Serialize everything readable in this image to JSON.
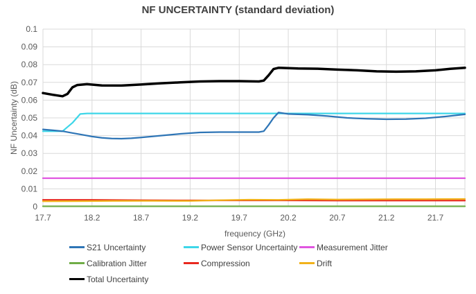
{
  "chart_data": {
    "type": "line",
    "title": "NF UNCERTAINTY (standard deviation)",
    "xlabel": "frequency (GHz)",
    "ylabel": "NF Uncertainty (dB)",
    "xlim": [
      17.7,
      22.0
    ],
    "ylim": [
      0,
      0.1
    ],
    "x_ticks": [
      "17.7",
      "18.2",
      "18.7",
      "19.2",
      "19.7",
      "20.2",
      "20.7",
      "21.2",
      "21.7"
    ],
    "y_ticks": [
      "0",
      "0.01",
      "0.02",
      "0.03",
      "0.04",
      "0.05",
      "0.06",
      "0.07",
      "0.08",
      "0.09",
      "0.1"
    ],
    "grid": true,
    "legend_position": "bottom",
    "series": [
      {
        "name": "S21 Uncertainty",
        "color": "#2E75B6",
        "points": [
          [
            17.7,
            0.0435
          ],
          [
            17.8,
            0.043
          ],
          [
            17.9,
            0.0425
          ],
          [
            18.0,
            0.0415
          ],
          [
            18.1,
            0.0405
          ],
          [
            18.2,
            0.0395
          ],
          [
            18.3,
            0.0388
          ],
          [
            18.4,
            0.0384
          ],
          [
            18.5,
            0.0383
          ],
          [
            18.6,
            0.0385
          ],
          [
            18.7,
            0.039
          ],
          [
            18.9,
            0.04
          ],
          [
            19.1,
            0.041
          ],
          [
            19.3,
            0.0418
          ],
          [
            19.5,
            0.042
          ],
          [
            19.7,
            0.042
          ],
          [
            19.9,
            0.042
          ],
          [
            19.95,
            0.0425
          ],
          [
            20.0,
            0.046
          ],
          [
            20.05,
            0.05
          ],
          [
            20.1,
            0.053
          ],
          [
            20.2,
            0.0522
          ],
          [
            20.4,
            0.0518
          ],
          [
            20.6,
            0.051
          ],
          [
            20.8,
            0.05
          ],
          [
            21.0,
            0.0495
          ],
          [
            21.2,
            0.0492
          ],
          [
            21.4,
            0.0493
          ],
          [
            21.6,
            0.0498
          ],
          [
            21.8,
            0.0508
          ],
          [
            22.0,
            0.052
          ]
        ]
      },
      {
        "name": "Power Sensor Uncertainty",
        "color": "#3DD6E8",
        "points": [
          [
            17.7,
            0.0425
          ],
          [
            17.9,
            0.0425
          ],
          [
            18.0,
            0.0472
          ],
          [
            18.08,
            0.0522
          ],
          [
            18.15,
            0.0525
          ],
          [
            18.5,
            0.0525
          ],
          [
            19.5,
            0.0525
          ],
          [
            20.5,
            0.0525
          ],
          [
            21.5,
            0.0525
          ],
          [
            22.0,
            0.0525
          ]
        ]
      },
      {
        "name": "Measurement Jitter",
        "color": "#E055E0",
        "points": [
          [
            17.7,
            0.016
          ],
          [
            18.5,
            0.016
          ],
          [
            19.5,
            0.016
          ],
          [
            20.5,
            0.016
          ],
          [
            21.5,
            0.016
          ],
          [
            22.0,
            0.016
          ]
        ]
      },
      {
        "name": "Calibration Jitter",
        "color": "#70AD47",
        "points": [
          [
            17.7,
            0.0002
          ],
          [
            19.0,
            0.0002
          ],
          [
            20.5,
            0.0002
          ],
          [
            22.0,
            0.0002
          ]
        ]
      },
      {
        "name": "Compression",
        "color": "#E8281E",
        "points": [
          [
            17.7,
            0.0038
          ],
          [
            18.2,
            0.0038
          ],
          [
            18.7,
            0.0036
          ],
          [
            19.2,
            0.0035
          ],
          [
            19.7,
            0.0035
          ],
          [
            20.2,
            0.0035
          ],
          [
            20.7,
            0.0034
          ],
          [
            21.2,
            0.0034
          ],
          [
            21.7,
            0.0034
          ],
          [
            22.0,
            0.0034
          ]
        ]
      },
      {
        "name": "Drift",
        "color": "#F2B21A",
        "points": [
          [
            17.7,
            0.003
          ],
          [
            18.0,
            0.0031
          ],
          [
            18.4,
            0.0032
          ],
          [
            18.8,
            0.0033
          ],
          [
            19.2,
            0.0032
          ],
          [
            19.5,
            0.0036
          ],
          [
            19.8,
            0.0039
          ],
          [
            20.1,
            0.0038
          ],
          [
            20.4,
            0.0042
          ],
          [
            20.7,
            0.004
          ],
          [
            21.0,
            0.0041
          ],
          [
            21.3,
            0.0042
          ],
          [
            21.6,
            0.0042
          ],
          [
            22.0,
            0.0043
          ]
        ]
      },
      {
        "name": "Total Uncertainty",
        "color": "#000000",
        "points": [
          [
            17.7,
            0.064
          ],
          [
            17.8,
            0.063
          ],
          [
            17.9,
            0.0622
          ],
          [
            17.95,
            0.0635
          ],
          [
            18.0,
            0.0672
          ],
          [
            18.05,
            0.0685
          ],
          [
            18.15,
            0.069
          ],
          [
            18.3,
            0.0683
          ],
          [
            18.5,
            0.0682
          ],
          [
            18.7,
            0.0688
          ],
          [
            18.9,
            0.0695
          ],
          [
            19.1,
            0.07
          ],
          [
            19.3,
            0.0705
          ],
          [
            19.5,
            0.0707
          ],
          [
            19.7,
            0.0707
          ],
          [
            19.9,
            0.0705
          ],
          [
            19.95,
            0.071
          ],
          [
            20.0,
            0.074
          ],
          [
            20.05,
            0.0775
          ],
          [
            20.1,
            0.0782
          ],
          [
            20.3,
            0.0778
          ],
          [
            20.5,
            0.0777
          ],
          [
            20.7,
            0.0772
          ],
          [
            20.9,
            0.0768
          ],
          [
            21.1,
            0.0762
          ],
          [
            21.3,
            0.076
          ],
          [
            21.5,
            0.0762
          ],
          [
            21.7,
            0.0768
          ],
          [
            21.85,
            0.0776
          ],
          [
            22.0,
            0.0782
          ]
        ]
      }
    ]
  }
}
